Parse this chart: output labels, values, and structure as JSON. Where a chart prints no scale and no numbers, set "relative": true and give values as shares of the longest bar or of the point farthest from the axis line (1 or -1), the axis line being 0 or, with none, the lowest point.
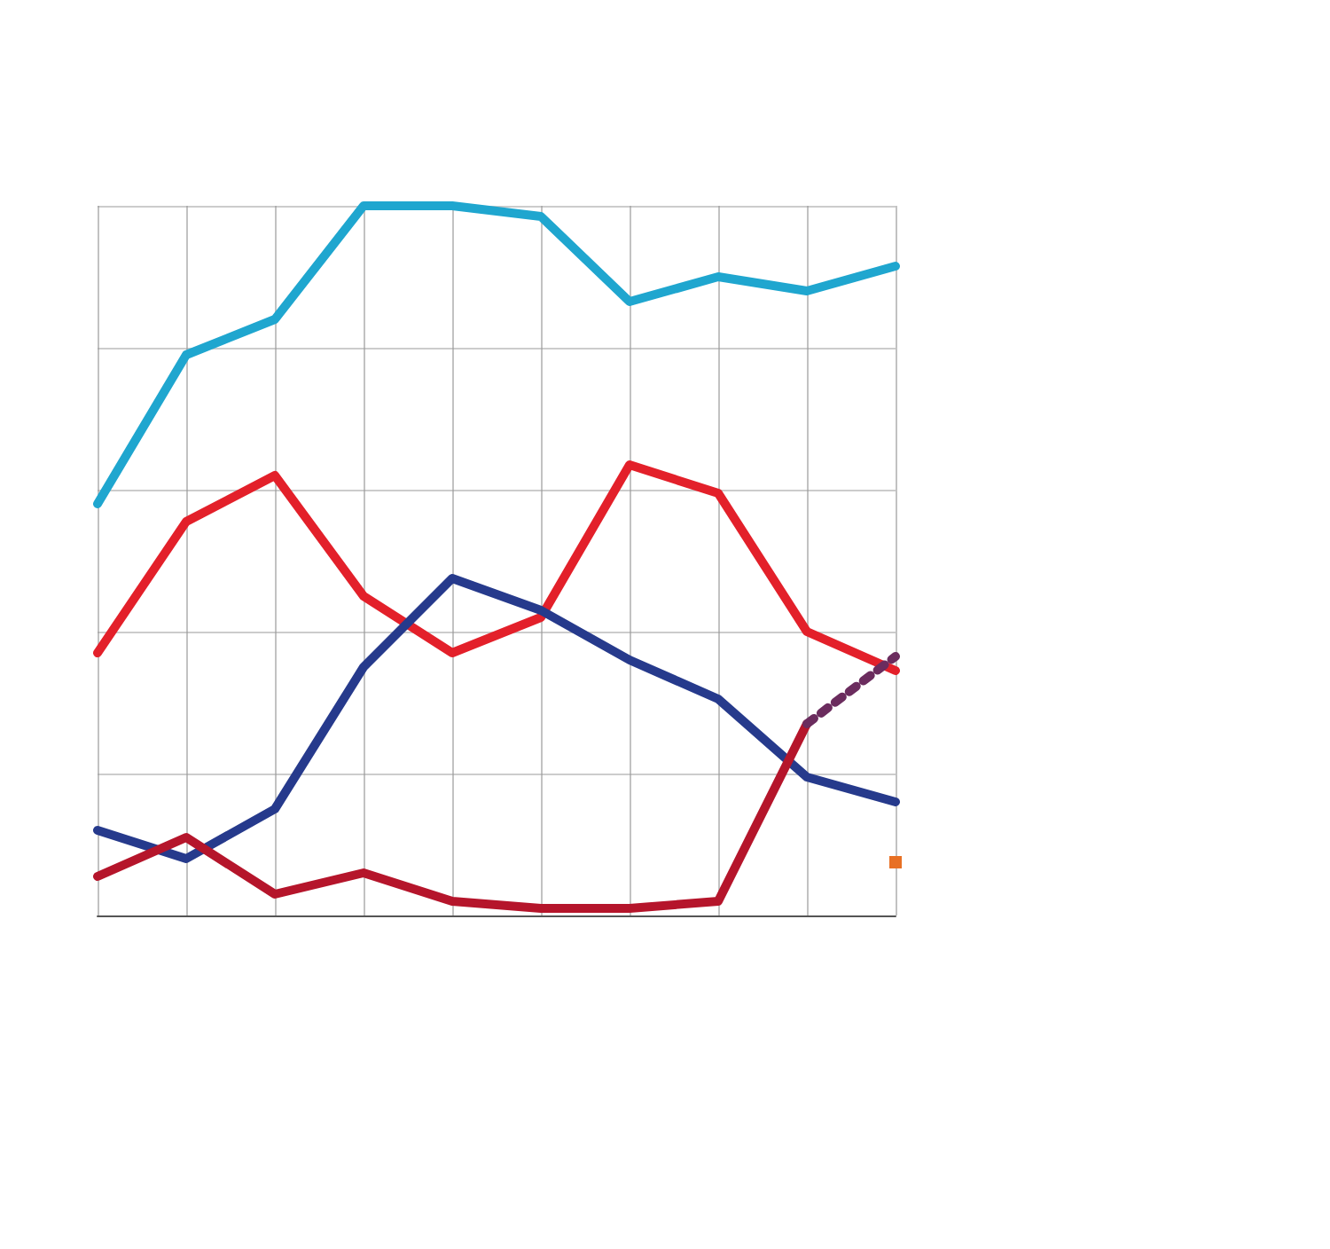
{
  "chart_data": {
    "type": "line",
    "relative": true,
    "grid": true,
    "marker": "none",
    "line_style": "solid",
    "categories": [
      null,
      null,
      null,
      null,
      null,
      null,
      null,
      null,
      null,
      null
    ],
    "series": [
      {
        "color": "#1fa6cf",
        "values": [
          0.58,
          0.79,
          0.84,
          1.0,
          1.0,
          0.985,
          0.865,
          0.9,
          0.88,
          0.915
        ]
      },
      {
        "color": "#e3202a",
        "values": [
          0.37,
          0.555,
          0.62,
          0.45,
          0.37,
          0.42,
          0.635,
          0.595,
          0.4,
          0.345
        ]
      },
      {
        "color": "#263a8c",
        "values": [
          0.12,
          0.08,
          0.15,
          0.35,
          0.475,
          0.43,
          0.36,
          0.305,
          0.195,
          0.16
        ]
      },
      {
        "color": "#b5152b",
        "values": [
          0.055,
          0.11,
          0.03,
          0.06,
          0.02,
          0.01,
          0.01,
          0.02,
          0.27,
          null
        ]
      },
      {
        "color": "#6b2c5e",
        "line_style": "dotted",
        "values": [
          null,
          null,
          null,
          null,
          null,
          null,
          null,
          null,
          0.27,
          0.365
        ]
      },
      {
        "marker": "square",
        "color": "#e87024",
        "values": [
          null,
          null,
          null,
          null,
          null,
          null,
          null,
          null,
          null,
          0.075
        ]
      }
    ]
  }
}
